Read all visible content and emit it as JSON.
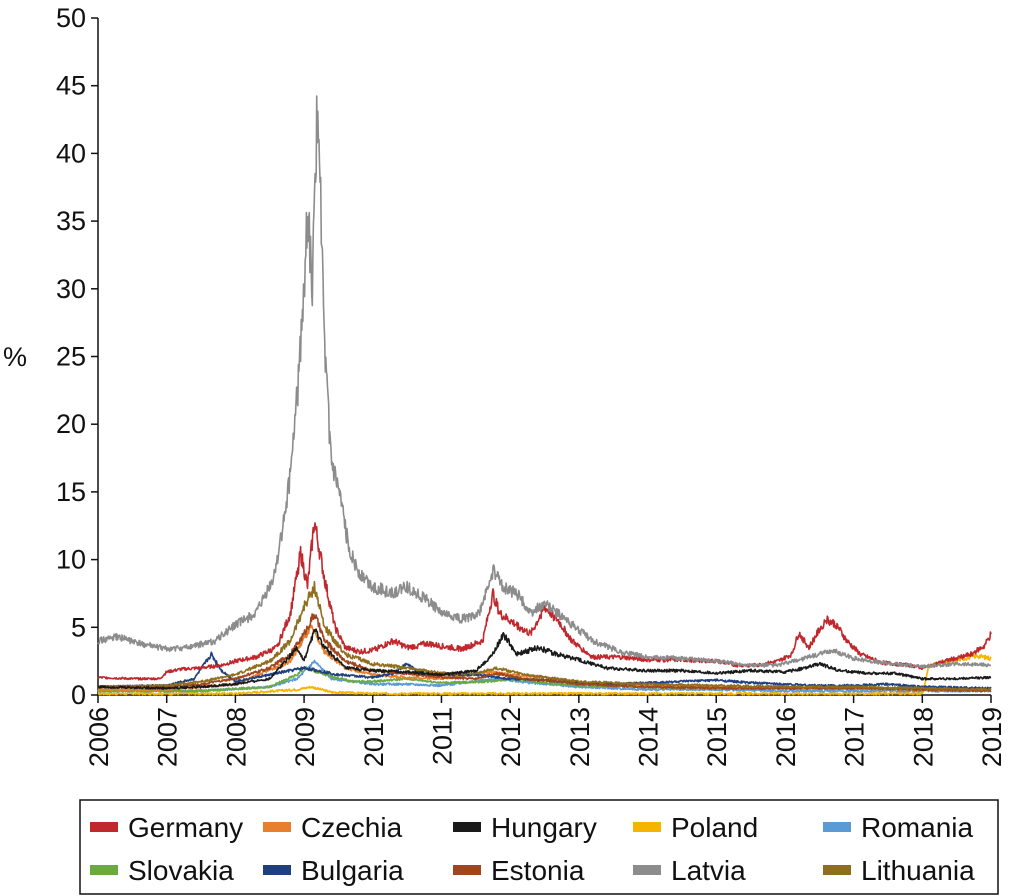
{
  "chart_data": {
    "type": "line",
    "title": "",
    "xlabel": "",
    "ylabel": "%",
    "xlim": [
      2006,
      2019
    ],
    "ylim": [
      0,
      50
    ],
    "yticks": [
      "0",
      "5",
      "10",
      "15",
      "20",
      "25",
      "30",
      "35",
      "40",
      "45",
      "50"
    ],
    "xticks": [
      "2006",
      "2007",
      "2008",
      "2009",
      "2010",
      "2011",
      "2012",
      "2013",
      "2014",
      "2015",
      "2016",
      "2017",
      "2018",
      "2019"
    ],
    "series": [
      {
        "name": "Germany",
        "color": "#c0282d",
        "points": [
          [
            2006,
            1.3
          ],
          [
            2006.5,
            1.2
          ],
          [
            2006.9,
            1.2
          ],
          [
            2007.0,
            1.7
          ],
          [
            2007.2,
            1.9
          ],
          [
            2007.5,
            2.0
          ],
          [
            2007.8,
            2.2
          ],
          [
            2008.0,
            2.5
          ],
          [
            2008.3,
            2.8
          ],
          [
            2008.6,
            3.5
          ],
          [
            2008.8,
            6.0
          ],
          [
            2008.95,
            10.5
          ],
          [
            2009.05,
            8.0
          ],
          [
            2009.15,
            12.8
          ],
          [
            2009.3,
            8.5
          ],
          [
            2009.45,
            5.0
          ],
          [
            2009.6,
            3.5
          ],
          [
            2009.8,
            3.2
          ],
          [
            2010.0,
            3.3
          ],
          [
            2010.3,
            4.0
          ],
          [
            2010.5,
            3.5
          ],
          [
            2010.8,
            3.8
          ],
          [
            2011.0,
            3.6
          ],
          [
            2011.3,
            3.4
          ],
          [
            2011.6,
            4.0
          ],
          [
            2011.75,
            7.5
          ],
          [
            2011.85,
            6.0
          ],
          [
            2012.0,
            5.5
          ],
          [
            2012.3,
            4.5
          ],
          [
            2012.5,
            6.5
          ],
          [
            2012.7,
            5.5
          ],
          [
            2012.9,
            4.0
          ],
          [
            2013.2,
            2.8
          ],
          [
            2013.6,
            2.8
          ],
          [
            2014.0,
            2.6
          ],
          [
            2014.5,
            2.6
          ],
          [
            2015.0,
            2.5
          ],
          [
            2015.3,
            2.2
          ],
          [
            2015.6,
            2.2
          ],
          [
            2015.9,
            2.5
          ],
          [
            2016.1,
            3.0
          ],
          [
            2016.2,
            4.6
          ],
          [
            2016.35,
            3.5
          ],
          [
            2016.5,
            4.8
          ],
          [
            2016.6,
            5.6
          ],
          [
            2016.75,
            5.2
          ],
          [
            2016.9,
            4.0
          ],
          [
            2017.1,
            3.0
          ],
          [
            2017.4,
            2.4
          ],
          [
            2017.8,
            2.2
          ],
          [
            2018.0,
            2.0
          ],
          [
            2018.4,
            2.6
          ],
          [
            2018.7,
            3.0
          ],
          [
            2018.9,
            3.6
          ],
          [
            2019,
            4.5
          ]
        ]
      },
      {
        "name": "Czechia",
        "color": "#e87f2e",
        "points": [
          [
            2006,
            0.4
          ],
          [
            2007.0,
            0.4
          ],
          [
            2008.0,
            0.8
          ],
          [
            2008.8,
            2.5
          ],
          [
            2009.1,
            5.0
          ],
          [
            2009.3,
            3.2
          ],
          [
            2009.6,
            2.0
          ],
          [
            2010.0,
            1.5
          ],
          [
            2010.5,
            1.3
          ],
          [
            2011.0,
            1.2
          ],
          [
            2011.7,
            1.7
          ],
          [
            2012.0,
            1.5
          ],
          [
            2012.5,
            1.3
          ],
          [
            2013.0,
            0.9
          ],
          [
            2014.0,
            0.7
          ],
          [
            2015.0,
            0.6
          ],
          [
            2016.0,
            0.5
          ],
          [
            2017.0,
            0.5
          ],
          [
            2018.0,
            0.4
          ],
          [
            2019,
            0.4
          ]
        ]
      },
      {
        "name": "Hungary",
        "color": "#1a1a1a",
        "points": [
          [
            2006,
            0.6
          ],
          [
            2007.0,
            0.5
          ],
          [
            2007.5,
            0.6
          ],
          [
            2008.0,
            0.8
          ],
          [
            2008.5,
            1.2
          ],
          [
            2008.9,
            3.5
          ],
          [
            2009.0,
            2.5
          ],
          [
            2009.15,
            4.8
          ],
          [
            2009.3,
            3.5
          ],
          [
            2009.6,
            2.0
          ],
          [
            2010.0,
            1.8
          ],
          [
            2010.5,
            1.7
          ],
          [
            2011.0,
            1.5
          ],
          [
            2011.5,
            1.8
          ],
          [
            2011.75,
            3.0
          ],
          [
            2011.9,
            4.5
          ],
          [
            2012.1,
            3.0
          ],
          [
            2012.4,
            3.5
          ],
          [
            2012.7,
            3.0
          ],
          [
            2013.0,
            2.6
          ],
          [
            2013.4,
            2.0
          ],
          [
            2014.0,
            1.8
          ],
          [
            2014.5,
            1.8
          ],
          [
            2015.0,
            1.6
          ],
          [
            2015.5,
            1.8
          ],
          [
            2016.0,
            1.7
          ],
          [
            2016.3,
            2.0
          ],
          [
            2016.5,
            2.3
          ],
          [
            2016.8,
            1.8
          ],
          [
            2017.2,
            1.6
          ],
          [
            2017.6,
            1.6
          ],
          [
            2018.0,
            1.2
          ],
          [
            2018.5,
            1.2
          ],
          [
            2019,
            1.3
          ]
        ]
      },
      {
        "name": "Poland",
        "color": "#f5b400",
        "points": [
          [
            2006,
            0.1
          ],
          [
            2008.0,
            0.1
          ],
          [
            2008.9,
            0.4
          ],
          [
            2009.1,
            0.6
          ],
          [
            2009.4,
            0.2
          ],
          [
            2010.0,
            0.1
          ],
          [
            2012.0,
            0.1
          ],
          [
            2014.0,
            0.1
          ],
          [
            2016.0,
            0.1
          ],
          [
            2018.0,
            0.1
          ],
          [
            2018.1,
            2.2
          ],
          [
            2018.5,
            2.6
          ],
          [
            2018.8,
            2.9
          ],
          [
            2019,
            2.7
          ]
        ]
      },
      {
        "name": "Romania",
        "color": "#5b9bd5",
        "points": [
          [
            2006,
            0.3
          ],
          [
            2007.5,
            0.3
          ],
          [
            2008.5,
            0.6
          ],
          [
            2008.9,
            1.2
          ],
          [
            2009.15,
            2.5
          ],
          [
            2009.4,
            1.2
          ],
          [
            2010.0,
            0.8
          ],
          [
            2010.5,
            0.8
          ],
          [
            2011.0,
            0.7
          ],
          [
            2011.8,
            1.2
          ],
          [
            2012.3,
            0.9
          ],
          [
            2013.0,
            0.6
          ],
          [
            2014.0,
            0.4
          ],
          [
            2015.0,
            0.4
          ],
          [
            2016.0,
            0.3
          ],
          [
            2017.0,
            0.3
          ],
          [
            2018.0,
            0.3
          ],
          [
            2019,
            0.3
          ]
        ]
      },
      {
        "name": "Slovakia",
        "color": "#6aaa3e",
        "points": [
          [
            2006,
            0.3
          ],
          [
            2007.5,
            0.3
          ],
          [
            2008.5,
            0.6
          ],
          [
            2008.9,
            1.5
          ],
          [
            2009.0,
            2.0
          ],
          [
            2009.3,
            1.5
          ],
          [
            2009.7,
            1.0
          ],
          [
            2010.0,
            1.0
          ],
          [
            2010.5,
            1.2
          ],
          [
            2011.0,
            0.9
          ],
          [
            2011.7,
            1.0
          ],
          [
            2012.0,
            1.2
          ],
          [
            2012.5,
            0.9
          ],
          [
            2013.0,
            0.7
          ],
          [
            2014.0,
            0.6
          ],
          [
            2015.0,
            0.5
          ],
          [
            2016.0,
            0.5
          ],
          [
            2017.0,
            0.5
          ],
          [
            2018.0,
            0.5
          ],
          [
            2019,
            0.4
          ]
        ]
      },
      {
        "name": "Bulgaria",
        "color": "#1f3f7f",
        "points": [
          [
            2006,
            0.6
          ],
          [
            2007.0,
            0.7
          ],
          [
            2007.4,
            1.2
          ],
          [
            2007.65,
            3.0
          ],
          [
            2007.8,
            1.8
          ],
          [
            2008.0,
            1.0
          ],
          [
            2008.5,
            1.5
          ],
          [
            2009.0,
            2.0
          ],
          [
            2009.5,
            1.5
          ],
          [
            2010.0,
            1.3
          ],
          [
            2010.3,
            1.6
          ],
          [
            2010.5,
            2.3
          ],
          [
            2010.7,
            1.6
          ],
          [
            2011.0,
            1.5
          ],
          [
            2011.5,
            1.5
          ],
          [
            2012.0,
            1.2
          ],
          [
            2012.5,
            1.1
          ],
          [
            2013.0,
            0.9
          ],
          [
            2013.5,
            0.8
          ],
          [
            2014.0,
            0.9
          ],
          [
            2014.5,
            1.0
          ],
          [
            2015.0,
            1.1
          ],
          [
            2015.5,
            0.9
          ],
          [
            2016.0,
            0.8
          ],
          [
            2016.5,
            0.7
          ],
          [
            2017.0,
            0.7
          ],
          [
            2017.5,
            0.8
          ],
          [
            2018.0,
            0.6
          ],
          [
            2019,
            0.5
          ]
        ]
      },
      {
        "name": "Estonia",
        "color": "#a0461e",
        "points": [
          [
            2006,
            0.6
          ],
          [
            2007.0,
            0.6
          ],
          [
            2007.5,
            0.8
          ],
          [
            2008.0,
            1.2
          ],
          [
            2008.5,
            2.0
          ],
          [
            2008.8,
            3.0
          ],
          [
            2009.0,
            4.5
          ],
          [
            2009.15,
            6.0
          ],
          [
            2009.3,
            4.0
          ],
          [
            2009.6,
            2.5
          ],
          [
            2010.0,
            1.8
          ],
          [
            2010.5,
            1.6
          ],
          [
            2011.0,
            1.3
          ],
          [
            2011.5,
            1.2
          ],
          [
            2011.8,
            1.6
          ],
          [
            2012.2,
            1.2
          ],
          [
            2012.7,
            1.0
          ],
          [
            2013.0,
            0.8
          ],
          [
            2014.0,
            0.6
          ],
          [
            2015.0,
            0.5
          ],
          [
            2016.0,
            0.5
          ],
          [
            2017.0,
            0.5
          ],
          [
            2018.0,
            0.4
          ],
          [
            2019,
            0.3
          ]
        ]
      },
      {
        "name": "Latvia",
        "color": "#8c8c8c",
        "points": [
          [
            2006,
            4.0
          ],
          [
            2006.3,
            4.3
          ],
          [
            2006.6,
            3.8
          ],
          [
            2007.0,
            3.4
          ],
          [
            2007.3,
            3.5
          ],
          [
            2007.7,
            4.0
          ],
          [
            2008.0,
            5.2
          ],
          [
            2008.3,
            6.0
          ],
          [
            2008.55,
            8.5
          ],
          [
            2008.75,
            14.0
          ],
          [
            2008.9,
            22.0
          ],
          [
            2009.0,
            30.0
          ],
          [
            2009.05,
            36.0
          ],
          [
            2009.12,
            30.0
          ],
          [
            2009.2,
            44.8
          ],
          [
            2009.3,
            25.0
          ],
          [
            2009.4,
            17.0
          ],
          [
            2009.5,
            15.0
          ],
          [
            2009.65,
            11.0
          ],
          [
            2009.8,
            9.0
          ],
          [
            2010.0,
            8.0
          ],
          [
            2010.3,
            7.5
          ],
          [
            2010.5,
            8.0
          ],
          [
            2010.8,
            7.0
          ],
          [
            2011.0,
            6.0
          ],
          [
            2011.3,
            5.6
          ],
          [
            2011.55,
            6.0
          ],
          [
            2011.75,
            9.2
          ],
          [
            2011.9,
            8.0
          ],
          [
            2012.1,
            7.5
          ],
          [
            2012.3,
            6.0
          ],
          [
            2012.5,
            6.8
          ],
          [
            2012.7,
            6.0
          ],
          [
            2012.9,
            5.2
          ],
          [
            2013.2,
            4.0
          ],
          [
            2013.6,
            3.2
          ],
          [
            2014.0,
            2.8
          ],
          [
            2014.5,
            2.7
          ],
          [
            2015.0,
            2.5
          ],
          [
            2015.5,
            2.2
          ],
          [
            2015.9,
            2.2
          ],
          [
            2016.2,
            2.6
          ],
          [
            2016.5,
            3.0
          ],
          [
            2016.7,
            3.3
          ],
          [
            2017.0,
            2.7
          ],
          [
            2017.4,
            2.4
          ],
          [
            2017.8,
            2.2
          ],
          [
            2018.0,
            2.1
          ],
          [
            2018.5,
            2.3
          ],
          [
            2019,
            2.2
          ]
        ]
      },
      {
        "name": "Lithuania",
        "color": "#8f6e1f",
        "points": [
          [
            2006,
            0.6
          ],
          [
            2007.0,
            0.7
          ],
          [
            2007.5,
            1.0
          ],
          [
            2008.0,
            1.5
          ],
          [
            2008.5,
            2.5
          ],
          [
            2008.8,
            4.0
          ],
          [
            2009.0,
            6.5
          ],
          [
            2009.15,
            8.0
          ],
          [
            2009.3,
            5.0
          ],
          [
            2009.6,
            3.0
          ],
          [
            2010.0,
            2.3
          ],
          [
            2010.5,
            2.0
          ],
          [
            2011.0,
            1.6
          ],
          [
            2011.5,
            1.6
          ],
          [
            2011.8,
            2.0
          ],
          [
            2012.2,
            1.5
          ],
          [
            2012.7,
            1.2
          ],
          [
            2013.0,
            1.0
          ],
          [
            2014.0,
            0.8
          ],
          [
            2015.0,
            0.7
          ],
          [
            2016.0,
            0.6
          ],
          [
            2017.0,
            0.6
          ],
          [
            2018.0,
            0.5
          ],
          [
            2019,
            0.4
          ]
        ]
      }
    ],
    "legend": {
      "placement": "bottom",
      "rows": [
        [
          "Germany",
          "Czechia",
          "Hungary",
          "Poland",
          "Romania"
        ],
        [
          "Slovakia",
          "Bulgaria",
          "Estonia",
          "Latvia",
          "Lithuania"
        ]
      ]
    }
  }
}
